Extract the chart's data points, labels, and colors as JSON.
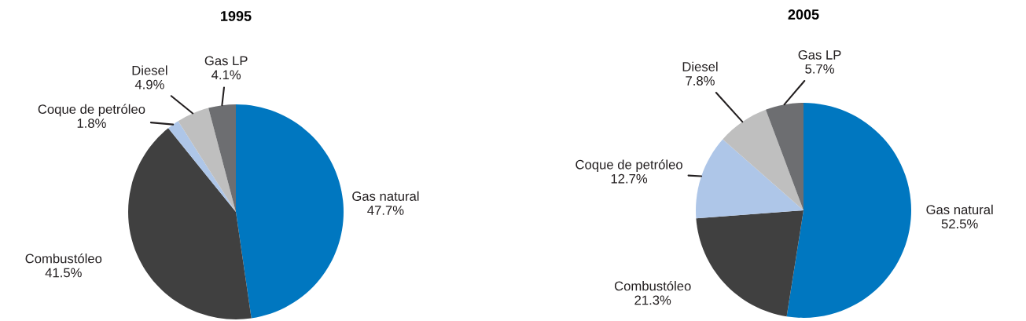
{
  "chart_data": [
    {
      "type": "pie",
      "title": "1995",
      "categories": [
        "Gas natural",
        "Combustóleo",
        "Coque de petróleo",
        "Diesel",
        "Gas LP"
      ],
      "values": [
        47.7,
        41.5,
        1.8,
        4.9,
        4.1
      ],
      "value_labels": [
        "47.7%",
        "41.5%",
        "1.8%",
        "4.9%",
        "4.1%"
      ],
      "colors": [
        "#0077c0",
        "#404040",
        "#aec6e8",
        "#bfbfbf",
        "#6d6e71"
      ]
    },
    {
      "type": "pie",
      "title": "2005",
      "categories": [
        "Gas natural",
        "Combustóleo",
        "Coque de petróleo",
        "Diesel",
        "Gas LP"
      ],
      "values": [
        52.5,
        21.3,
        12.7,
        7.8,
        5.7
      ],
      "value_labels": [
        "52.5%",
        "21.3%",
        "12.7%",
        "7.8%",
        "5.7%"
      ],
      "colors": [
        "#0077c0",
        "#404040",
        "#aec6e8",
        "#bfbfbf",
        "#6d6e71"
      ]
    }
  ]
}
